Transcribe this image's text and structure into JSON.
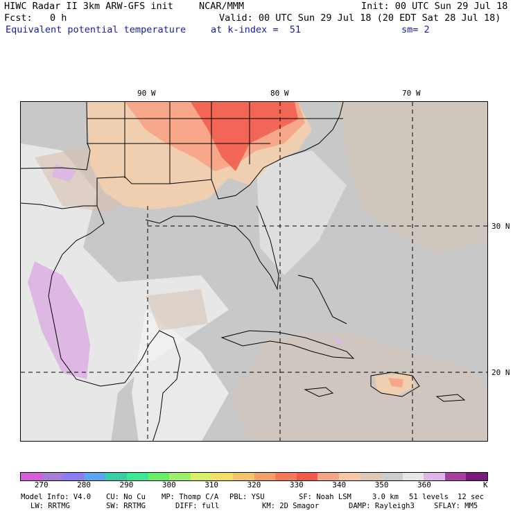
{
  "header": {
    "title": "HIWC Radar II 3km ARW-GFS init",
    "org": "NCAR/MMM",
    "init": "Init: 00 UTC Sun 29 Jul 18",
    "fcst_label": "Fcst:",
    "fcst_value": "0 h",
    "valid": "Valid: 00 UTC Sun 29 Jul 18 (20 EDT Sat 28 Jul 18)",
    "field": "Equivalent potential temperature",
    "level": "at k-index =  51",
    "smoothing": "sm= 2"
  },
  "map": {
    "lon_labels": [
      "90 W",
      "80 W",
      "70 W"
    ],
    "lat_labels": [
      "30 N",
      "20 N"
    ],
    "colors": {
      "ocean": "#c8c8c8",
      "ocean_light": "#e6e6e6",
      "ocean_white": "#f4f4f4",
      "warm_tan": "#d6c4b6",
      "tan": "#f0cfb0",
      "salmon": "#f7a78a",
      "red": "#f05a4a",
      "purple": "#dcb8e2",
      "border": "#000000"
    }
  },
  "colorbar": {
    "colors": [
      "#d65ed6",
      "#a67cd6",
      "#8a7ef0",
      "#5aa6f0",
      "#3acca6",
      "#3ae896",
      "#6aee6a",
      "#9ef06a",
      "#d6f06a",
      "#f4de6a",
      "#f4c46a",
      "#f49e6a",
      "#f47a5a",
      "#f05a4a",
      "#f4a68a",
      "#f6c8a8",
      "#dcc8b8",
      "#cccccc",
      "#e6e6e6",
      "#dcb6e6",
      "#a6409e",
      "#7a1a7a"
    ],
    "ticks": [
      "270",
      "280",
      "290",
      "300",
      "310",
      "320",
      "330",
      "340",
      "350",
      "360"
    ],
    "unit": "K"
  },
  "footer": {
    "line1": [
      "Model Info: V4.0",
      "CU: No Cu",
      "MP: Thomp C/A",
      "PBL: YSU",
      "SF: Noah LSM",
      "3.0 km",
      "51 levels",
      "12 sec"
    ],
    "line2": [
      "LW: RRTMG",
      "SW: RRTMG",
      "DIFF: full",
      "KM: 2D Smagor",
      "DAMP: Rayleigh3",
      "SFLAY: MM5"
    ]
  }
}
